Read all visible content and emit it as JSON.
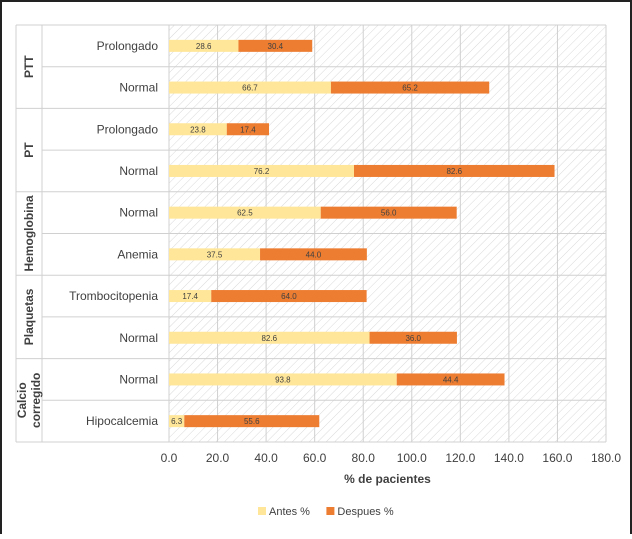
{
  "chart_data": {
    "type": "bar",
    "stacked": true,
    "orientation": "horizontal",
    "title": "",
    "xlabel": "% de pacientes",
    "ylabel": "",
    "xlim": [
      0,
      180
    ],
    "x_ticks": [
      "0.0",
      "20.0",
      "40.0",
      "60.0",
      "80.0",
      "100.0",
      "120.0",
      "140.0",
      "160.0",
      "180.0"
    ],
    "grid": true,
    "legend_position": "bottom",
    "groups": [
      {
        "label": "PTT",
        "categories": [
          "Prolongado",
          "Normal"
        ]
      },
      {
        "label": "PT",
        "categories": [
          "Prolongado",
          "Normal"
        ]
      },
      {
        "label": "Hemoglobina",
        "categories": [
          "Normal",
          "Anemia"
        ]
      },
      {
        "label": "Plaquetas",
        "categories": [
          "Trombocitopenia",
          "Normal"
        ]
      },
      {
        "label": "Calcio corregido",
        "label_lines": [
          "Calcio",
          "corregido"
        ],
        "categories": [
          "Normal",
          "Hipocalcemia"
        ]
      }
    ],
    "series": [
      {
        "name": "Antes %",
        "color": "#FFE699",
        "values": [
          28.6,
          66.7,
          23.8,
          76.2,
          62.5,
          37.5,
          17.4,
          82.6,
          93.8,
          6.3
        ],
        "labels": [
          "28.6",
          "66.7",
          "23.8",
          "76.2",
          "62.5",
          "37.5",
          "17.4",
          "82.6",
          "93.8",
          "6.3"
        ]
      },
      {
        "name": "Despues %",
        "color": "#ED7D31",
        "values": [
          30.4,
          65.2,
          17.4,
          82.6,
          56.0,
          44.0,
          64.0,
          36.0,
          44.4,
          55.6
        ],
        "labels": [
          "30.4",
          "65.2",
          "17.4",
          "82.6",
          "56.0",
          "44.0",
          "64.0",
          "36.0",
          "44.4",
          "55.6"
        ]
      }
    ]
  }
}
